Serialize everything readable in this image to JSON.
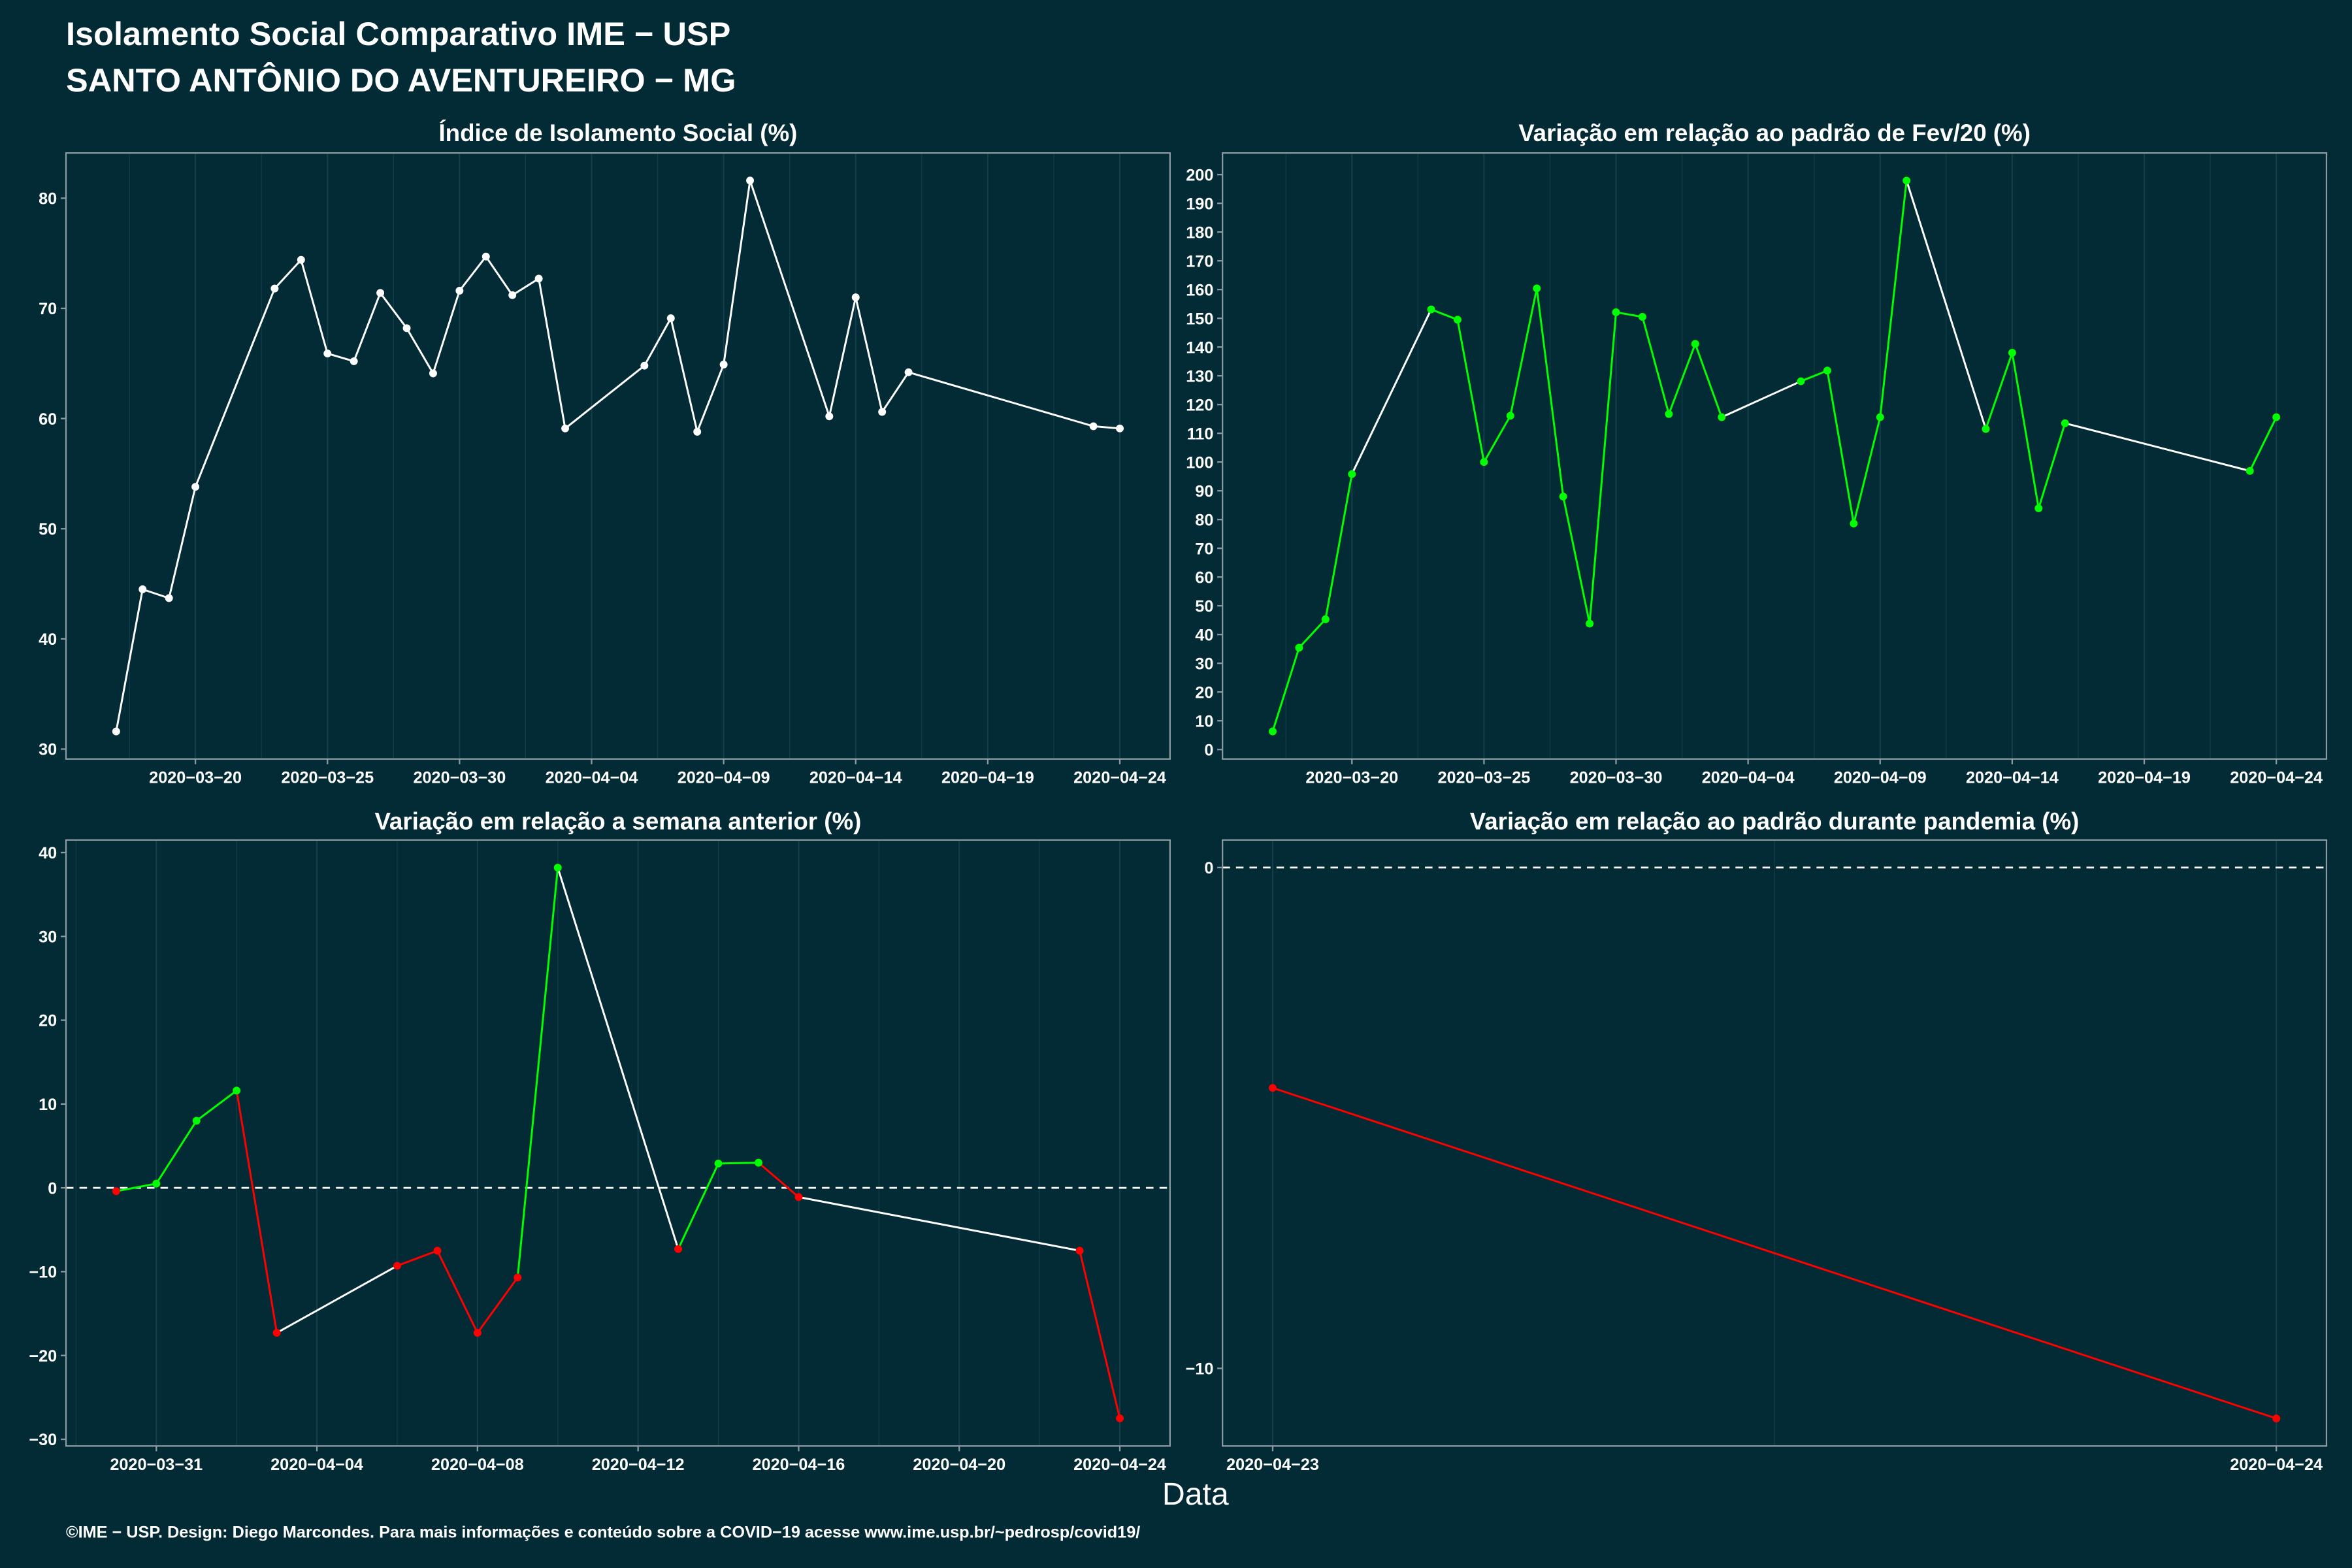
{
  "title": {
    "line1": "Isolamento Social Comparativo IME − USP",
    "line2": "SANTO ANTÔNIO DO AVENTUREIRO − MG"
  },
  "xlabel": "Data",
  "footer": "©IME − USP. Design: Diego Marcondes. Para mais informações e conteúdo sobre a COVID−19 acesse www.ime.usp.br/~pedrosp/covid19/",
  "colors": {
    "background": "#032b35",
    "panel_border": "#8b9a9e",
    "grid": "#123f4a",
    "reference_line": "#ffffff",
    "line_neutral": "#ffffff"
  },
  "chart_data": [
    {
      "type": "line",
      "title": "Índice de Isolamento Social (%)",
      "grid": "vertical",
      "color": "#ffffff",
      "x": [
        "2020-03-17",
        "2020-03-18",
        "2020-03-19",
        "2020-03-20",
        "2020-03-23",
        "2020-03-24",
        "2020-03-25",
        "2020-03-26",
        "2020-03-27",
        "2020-03-28",
        "2020-03-29",
        "2020-03-30",
        "2020-03-31",
        "2020-04-01",
        "2020-04-02",
        "2020-04-03",
        "2020-04-06",
        "2020-04-07",
        "2020-04-08",
        "2020-04-09",
        "2020-04-10",
        "2020-04-13",
        "2020-04-14",
        "2020-04-15",
        "2020-04-16",
        "2020-04-23",
        "2020-04-24"
      ],
      "series": [
        {
          "values": [
            31.6,
            44.5,
            43.7,
            53.8,
            71.8,
            74.4,
            65.9,
            65.2,
            71.4,
            68.2,
            64.1,
            71.6,
            74.7,
            71.2,
            72.7,
            59.1,
            64.8,
            69.1,
            58.8,
            64.9,
            81.6,
            60.2,
            71.0,
            60.6,
            64.2,
            59.3,
            59.1
          ]
        }
      ],
      "xlim": [
        "2020-03-15T02:24",
        "2020-04-25T21:36"
      ],
      "ylim": [
        29.1,
        84.1
      ],
      "xticks": [
        {
          "value": "2020-03-20",
          "label": "2020−03−20"
        },
        {
          "value": "2020-03-25",
          "label": "2020−03−25"
        },
        {
          "value": "2020-03-30",
          "label": "2020−03−30"
        },
        {
          "value": "2020-04-04",
          "label": "2020−04−04"
        },
        {
          "value": "2020-04-09",
          "label": "2020−04−09"
        },
        {
          "value": "2020-04-14",
          "label": "2020−04−14"
        },
        {
          "value": "2020-04-19",
          "label": "2020−04−19"
        },
        {
          "value": "2020-04-24",
          "label": "2020−04−24"
        }
      ],
      "yticks": [
        {
          "value": 30,
          "label": "30"
        },
        {
          "value": 40,
          "label": "40"
        },
        {
          "value": 50,
          "label": "50"
        },
        {
          "value": 60,
          "label": "60"
        },
        {
          "value": 70,
          "label": "70"
        },
        {
          "value": 80,
          "label": "80"
        }
      ]
    },
    {
      "type": "line",
      "title": "Variação em relação ao padrão de Fev/20 (%)",
      "grid": "vertical",
      "color": "#00ff00",
      "x": [
        "2020-03-17",
        "2020-03-18",
        "2020-03-19",
        "2020-03-20",
        "2020-03-23",
        "2020-03-24",
        "2020-03-25",
        "2020-03-26",
        "2020-03-27",
        "2020-03-28",
        "2020-03-29",
        "2020-03-30",
        "2020-03-31",
        "2020-04-01",
        "2020-04-02",
        "2020-04-03",
        "2020-04-06",
        "2020-04-07",
        "2020-04-08",
        "2020-04-09",
        "2020-04-10",
        "2020-04-13",
        "2020-04-14",
        "2020-04-15",
        "2020-04-16",
        "2020-04-23",
        "2020-04-24"
      ],
      "series": [
        {
          "values": [
            6.3,
            35.4,
            45.3,
            95.8,
            153.1,
            149.5,
            100.0,
            116.1,
            160.4,
            88.0,
            43.8,
            152.1,
            150.5,
            116.7,
            141.1,
            115.6,
            128.1,
            131.8,
            78.6,
            115.6,
            197.9,
            111.5,
            138.0,
            83.9,
            113.5,
            96.9,
            115.6
          ]
        }
      ],
      "xlim": [
        "2020-03-15T02:24",
        "2020-04-25T21:36"
      ],
      "ylim": [
        -3.3,
        207.5
      ],
      "xticks": [
        {
          "value": "2020-03-20",
          "label": "2020−03−20"
        },
        {
          "value": "2020-03-25",
          "label": "2020−03−25"
        },
        {
          "value": "2020-03-30",
          "label": "2020−03−30"
        },
        {
          "value": "2020-04-04",
          "label": "2020−04−04"
        },
        {
          "value": "2020-04-09",
          "label": "2020−04−09"
        },
        {
          "value": "2020-04-14",
          "label": "2020−04−14"
        },
        {
          "value": "2020-04-19",
          "label": "2020−04−19"
        },
        {
          "value": "2020-04-24",
          "label": "2020−04−24"
        }
      ],
      "yticks": [
        {
          "value": 0,
          "label": "0"
        },
        {
          "value": 10,
          "label": "10"
        },
        {
          "value": 20,
          "label": "20"
        },
        {
          "value": 30,
          "label": "30"
        },
        {
          "value": 40,
          "label": "40"
        },
        {
          "value": 50,
          "label": "50"
        },
        {
          "value": 60,
          "label": "60"
        },
        {
          "value": 70,
          "label": "70"
        },
        {
          "value": 80,
          "label": "80"
        },
        {
          "value": 90,
          "label": "90"
        },
        {
          "value": 100,
          "label": "100"
        },
        {
          "value": 110,
          "label": "110"
        },
        {
          "value": 120,
          "label": "120"
        },
        {
          "value": 130,
          "label": "130"
        },
        {
          "value": 140,
          "label": "140"
        },
        {
          "value": 150,
          "label": "150"
        },
        {
          "value": 160,
          "label": "160"
        },
        {
          "value": 170,
          "label": "170"
        },
        {
          "value": 180,
          "label": "180"
        },
        {
          "value": 190,
          "label": "190"
        },
        {
          "value": 200,
          "label": "200"
        }
      ]
    },
    {
      "type": "line",
      "title": "Variação em relação a semana anterior (%)",
      "grid": "vertical",
      "color_positive": "#00ff00",
      "color_negative": "#ff0000",
      "reference_line": {
        "y": 0,
        "style": "dashed"
      },
      "x": [
        "2020-03-30",
        "2020-03-31",
        "2020-04-01",
        "2020-04-02",
        "2020-04-03",
        "2020-04-06",
        "2020-04-07",
        "2020-04-08",
        "2020-04-09",
        "2020-04-10",
        "2020-04-13",
        "2020-04-14",
        "2020-04-15",
        "2020-04-16",
        "2020-04-23",
        "2020-04-24"
      ],
      "series": [
        {
          "values": [
            -0.4,
            0.5,
            8.0,
            11.6,
            -17.3,
            -9.3,
            -7.5,
            -17.3,
            -10.7,
            38.2,
            -7.3,
            2.9,
            3.0,
            -1.1,
            -7.5,
            -27.5
          ]
        }
      ],
      "xlim": [
        "2020-03-28T18:00",
        "2020-04-25T06:00"
      ],
      "ylim": [
        -30.8,
        41.5
      ],
      "xticks": [
        {
          "value": "2020-03-31",
          "label": "2020−03−31"
        },
        {
          "value": "2020-04-04",
          "label": "2020−04−04"
        },
        {
          "value": "2020-04-08",
          "label": "2020−04−08"
        },
        {
          "value": "2020-04-12",
          "label": "2020−04−12"
        },
        {
          "value": "2020-04-16",
          "label": "2020−04−16"
        },
        {
          "value": "2020-04-20",
          "label": "2020−04−20"
        },
        {
          "value": "2020-04-24",
          "label": "2020−04−24"
        }
      ],
      "yticks": [
        {
          "value": -30,
          "label": "−30"
        },
        {
          "value": -20,
          "label": "−20"
        },
        {
          "value": -10,
          "label": "−10"
        },
        {
          "value": 0,
          "label": "0"
        },
        {
          "value": 10,
          "label": "10"
        },
        {
          "value": 20,
          "label": "20"
        },
        {
          "value": 30,
          "label": "30"
        },
        {
          "value": 40,
          "label": "40"
        }
      ]
    },
    {
      "type": "line",
      "title": "Variação em relação ao padrão durante pandemia (%)",
      "grid": "vertical",
      "color_positive": "#00ff00",
      "color_negative": "#ff0000",
      "reference_line": {
        "y": 0,
        "style": "dashed"
      },
      "x": [
        "2020-04-23",
        "2020-04-24"
      ],
      "series": [
        {
          "values": [
            -4.4,
            -11.0
          ]
        }
      ],
      "xlim": [
        "2020-04-22T22:48",
        "2020-04-24T01:12"
      ],
      "ylim": [
        -11.55,
        0.55
      ],
      "xticks": [
        {
          "value": "2020-04-23",
          "label": "2020−04−23"
        },
        {
          "value": "2020-04-24",
          "label": "2020−04−24"
        }
      ],
      "yticks": [
        {
          "value": -10,
          "label": "−10"
        },
        {
          "value": 0,
          "label": "0"
        }
      ]
    }
  ]
}
